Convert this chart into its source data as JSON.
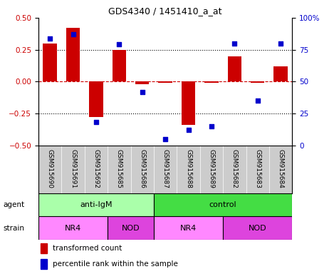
{
  "title": "GDS4340 / 1451410_a_at",
  "samples": [
    "GSM915690",
    "GSM915691",
    "GSM915692",
    "GSM915685",
    "GSM915686",
    "GSM915687",
    "GSM915688",
    "GSM915689",
    "GSM915682",
    "GSM915683",
    "GSM915684"
  ],
  "transformed_count": [
    0.3,
    0.42,
    -0.28,
    0.25,
    -0.02,
    -0.01,
    -0.34,
    -0.01,
    0.2,
    -0.01,
    0.12
  ],
  "percentile_rank": [
    84,
    87,
    18,
    79,
    42,
    5,
    12,
    15,
    80,
    35,
    80
  ],
  "ylim_left": [
    -0.5,
    0.5
  ],
  "ylim_right": [
    0,
    100
  ],
  "yticks_left": [
    -0.5,
    -0.25,
    0,
    0.25,
    0.5
  ],
  "yticks_right": [
    0,
    25,
    50,
    75,
    100
  ],
  "ytick_labels_right": [
    "0",
    "25",
    "50",
    "75",
    "100%"
  ],
  "bar_color": "#cc0000",
  "dot_color": "#0000cc",
  "agent_groups": [
    {
      "label": "anti-IgM",
      "start": 0,
      "end": 5,
      "color": "#aaffaa"
    },
    {
      "label": "control",
      "start": 5,
      "end": 11,
      "color": "#44dd44"
    }
  ],
  "strain_groups": [
    {
      "label": "NR4",
      "start": 0,
      "end": 3,
      "color": "#ff88ff"
    },
    {
      "label": "NOD",
      "start": 3,
      "end": 5,
      "color": "#dd44dd"
    },
    {
      "label": "NR4",
      "start": 5,
      "end": 8,
      "color": "#ff88ff"
    },
    {
      "label": "NOD",
      "start": 8,
      "end": 11,
      "color": "#dd44dd"
    }
  ],
  "xband_color": "#cccccc",
  "legend_bar_color": "#cc0000",
  "legend_dot_color": "#0000cc",
  "legend_label_bar": "transformed count",
  "legend_label_dot": "percentile rank within the sample",
  "hline_zero_color": "#cc0000",
  "hline_zero_style": "--",
  "grid_color": "black",
  "grid_style": ":",
  "grid_values": [
    -0.25,
    0.25
  ],
  "background_color": "#ffffff",
  "tick_label_color_left": "#cc0000",
  "tick_label_color_right": "#0000cc"
}
